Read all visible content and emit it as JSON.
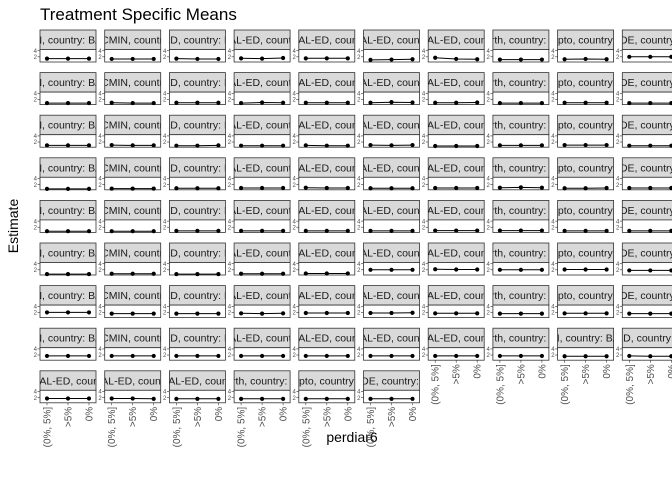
{
  "chart_data": {
    "type": "line",
    "title": "Treatment Specific Means",
    "xlabel": "perdiar6",
    "ylabel": "Estimate",
    "categories": [
      "(0%, 5%]",
      ">5%",
      "0%"
    ],
    "y_tick_labels": [
      "2",
      "4"
    ],
    "grid": false,
    "layout": "facet_wrap",
    "colors": {
      "strip_fill": "#d9d9d9",
      "panel_border": "#333333",
      "point": "#000000",
      "errorbar": "#000000"
    },
    "panels": [
      {
        "strip": "studyid: CMIN, country: BANGLADESH",
        "values": [
          1.4,
          1.4,
          1.4
        ]
      },
      {
        "strip": "studyid: CMIN, country: PERU",
        "values": [
          1.3,
          1.3,
          1.3
        ]
      },
      {
        "strip": "studyid: MAL-ED, country: BANGLADESH",
        "values": [
          1.4,
          1.3,
          1.3
        ]
      },
      {
        "strip": "studyid: MAL-ED, country: BRAZIL",
        "values": [
          1.5,
          1.4,
          1.6
        ]
      },
      {
        "strip": "studyid: MAL-ED, country: INDIA",
        "values": [
          1.5,
          1.5,
          1.5
        ]
      },
      {
        "strip": "studyid: MAL-ED, country: NEPAL",
        "values": [
          1.0,
          1.1,
          1.2
        ]
      },
      {
        "strip": "studyid: MAL-ED, country: PERU",
        "values": [
          1.7,
          1.3,
          1.2
        ]
      },
      {
        "strip": "studyid: NIH-Birth, country: BANGLADESH",
        "values": [
          1.1,
          1.1,
          1.1
        ]
      },
      {
        "strip": "studyid: NIH-Crypto, country: BANGLADESH",
        "values": [
          1.2,
          1.3,
          1.2
        ]
      },
      {
        "strip": "studyid: PROVIDE, country: BANGLADESH",
        "values": [
          2.0,
          2.0,
          2.0
        ]
      },
      {
        "strip": "studyid: CMIN, country: BANGLADESH",
        "values": [
          0.8,
          0.8,
          0.8
        ]
      },
      {
        "strip": "studyid: CMIN, country: PERU",
        "values": [
          0.9,
          0.8,
          0.8
        ]
      },
      {
        "strip": "studyid: MAL-ED, country: BANGLADESH",
        "values": [
          0.9,
          0.9,
          0.9
        ]
      },
      {
        "strip": "studyid: MAL-ED, country: BRAZIL",
        "values": [
          0.8,
          1.0,
          0.9
        ]
      },
      {
        "strip": "studyid: MAL-ED, country: INDIA",
        "values": [
          0.9,
          0.9,
          0.9
        ]
      },
      {
        "strip": "studyid: MAL-ED, country: NEPAL",
        "values": [
          0.9,
          1.1,
          1.0
        ]
      },
      {
        "strip": "studyid: MAL-ED, country: PERU",
        "values": [
          0.9,
          0.9,
          1.0
        ]
      },
      {
        "strip": "studyid: NIH-Birth, country: BANGLADESH",
        "values": [
          0.8,
          0.8,
          0.8
        ]
      },
      {
        "strip": "studyid: NIH-Crypto, country: BANGLADESH",
        "values": [
          0.9,
          0.9,
          0.9
        ]
      },
      {
        "strip": "studyid: PROVIDE, country: BANGLADESH",
        "values": [
          0.8,
          0.8,
          0.8
        ]
      },
      {
        "strip": "studyid: CMIN, country: BANGLADESH",
        "values": [
          0.9,
          0.9,
          0.9
        ]
      },
      {
        "strip": "studyid: CMIN, country: PERU",
        "values": [
          1.0,
          0.9,
          0.9
        ]
      },
      {
        "strip": "studyid: MAL-ED, country: BANGLADESH",
        "values": [
          0.8,
          0.8,
          0.9
        ]
      },
      {
        "strip": "studyid: MAL-ED, country: BRAZIL",
        "values": [
          0.8,
          0.8,
          0.8
        ]
      },
      {
        "strip": "studyid: MAL-ED, country: INDIA",
        "values": [
          0.9,
          0.8,
          0.8
        ]
      },
      {
        "strip": "studyid: MAL-ED, country: NEPAL",
        "values": [
          1.0,
          0.9,
          1.0
        ]
      },
      {
        "strip": "studyid: MAL-ED, country: PERU",
        "values": [
          0.7,
          0.7,
          0.7
        ]
      },
      {
        "strip": "studyid: NIH-Birth, country: BANGLADESH",
        "values": [
          0.9,
          0.9,
          0.9
        ]
      },
      {
        "strip": "studyid: NIH-Crypto, country: BANGLADESH",
        "values": [
          1.0,
          1.0,
          1.0
        ]
      },
      {
        "strip": "studyid: PROVIDE, country: BANGLADESH",
        "values": [
          0.8,
          0.8,
          0.8
        ]
      },
      {
        "strip": "studyid: CMIN, country: BANGLADESH",
        "values": [
          0.6,
          0.6,
          0.6
        ]
      },
      {
        "strip": "studyid: CMIN, country: PERU",
        "values": [
          0.7,
          0.7,
          0.7
        ]
      },
      {
        "strip": "studyid: MAL-ED, country: BANGLADESH",
        "values": [
          0.8,
          0.8,
          0.8
        ]
      },
      {
        "strip": "studyid: MAL-ED, country: BRAZIL",
        "values": [
          0.9,
          0.9,
          0.9
        ]
      },
      {
        "strip": "studyid: MAL-ED, country: INDIA",
        "values": [
          1.0,
          0.9,
          0.9
        ]
      },
      {
        "strip": "studyid: MAL-ED, country: NEPAL",
        "values": [
          0.8,
          0.8,
          0.8
        ]
      },
      {
        "strip": "studyid: MAL-ED, country: PERU",
        "values": [
          0.9,
          0.9,
          0.9
        ]
      },
      {
        "strip": "studyid: NIH-Birth, country: BANGLADESH",
        "values": [
          1.0,
          1.1,
          1.0
        ]
      },
      {
        "strip": "studyid: NIH-Crypto, country: BANGLADESH",
        "values": [
          0.8,
          0.8,
          0.9
        ]
      },
      {
        "strip": "studyid: PROVIDE, country: BANGLADESH",
        "values": [
          0.9,
          0.9,
          0.9
        ]
      },
      {
        "strip": "studyid: CMIN, country: BANGLADESH",
        "values": [
          0.7,
          0.7,
          0.7
        ]
      },
      {
        "strip": "studyid: CMIN, country: PERU",
        "values": [
          0.7,
          0.7,
          0.7
        ]
      },
      {
        "strip": "studyid: MAL-ED, country: BANGLADESH",
        "values": [
          0.8,
          0.8,
          0.8
        ]
      },
      {
        "strip": "studyid: MAL-ED, country: BRAZIL",
        "values": [
          0.8,
          0.8,
          0.8
        ]
      },
      {
        "strip": "studyid: MAL-ED, country: INDIA",
        "values": [
          0.8,
          0.8,
          0.8
        ]
      },
      {
        "strip": "studyid: MAL-ED, country: NEPAL",
        "values": [
          0.8,
          0.8,
          0.8
        ]
      },
      {
        "strip": "studyid: MAL-ED, country: PERU",
        "values": [
          0.9,
          0.9,
          0.9
        ]
      },
      {
        "strip": "studyid: NIH-Birth, country: BANGLADESH",
        "values": [
          0.9,
          0.9,
          0.9
        ]
      },
      {
        "strip": "studyid: NIH-Crypto, country: BANGLADESH",
        "values": [
          0.8,
          0.8,
          0.8
        ]
      },
      {
        "strip": "studyid: PROVIDE, country: BANGLADESH",
        "values": [
          0.8,
          0.8,
          0.8
        ]
      },
      {
        "strip": "studyid: CMIN, country: BANGLADESH",
        "values": [
          0.6,
          0.6,
          0.6
        ]
      },
      {
        "strip": "studyid: CMIN, country: PERU",
        "values": [
          0.7,
          0.7,
          0.7
        ]
      },
      {
        "strip": "studyid: MAL-ED, country: BANGLADESH",
        "values": [
          0.6,
          0.6,
          0.6
        ]
      },
      {
        "strip": "studyid: MAL-ED, country: BRAZIL",
        "values": [
          0.7,
          0.7,
          0.7
        ]
      },
      {
        "strip": "studyid: MAL-ED, country: INDIA",
        "values": [
          0.8,
          0.8,
          0.8
        ]
      },
      {
        "strip": "studyid: MAL-ED, country: NEPAL",
        "values": [
          2.0,
          2.0,
          2.0
        ]
      },
      {
        "strip": "studyid: MAL-ED, country: PERU",
        "values": [
          2.2,
          2.1,
          2.1
        ]
      },
      {
        "strip": "studyid: NIH-Birth, country: BANGLADESH",
        "values": [
          2.0,
          2.0,
          2.0
        ]
      },
      {
        "strip": "studyid: NIH-Crypto, country: BANGLADESH",
        "values": [
          2.1,
          2.1,
          2.1
        ]
      },
      {
        "strip": "studyid: PROVIDE, country: BANGLADESH",
        "values": [
          1.8,
          1.8,
          1.8
        ]
      },
      {
        "strip": "studyid: CMIN, country: BANGLADESH",
        "values": [
          2.0,
          2.0,
          2.0
        ]
      },
      {
        "strip": "studyid: CMIN, country: PERU",
        "values": [
          1.6,
          1.6,
          1.6
        ]
      },
      {
        "strip": "studyid: MAL-ED, country: BANGLADESH",
        "values": [
          1.6,
          1.6,
          1.6
        ]
      },
      {
        "strip": "studyid: MAL-ED, country: BRAZIL",
        "values": [
          1.7,
          1.6,
          1.7
        ]
      },
      {
        "strip": "studyid: MAL-ED, country: INDIA",
        "values": [
          1.8,
          1.8,
          1.8
        ]
      },
      {
        "strip": "studyid: MAL-ED, country: NEPAL",
        "values": [
          1.8,
          1.8,
          1.9
        ]
      },
      {
        "strip": "studyid: MAL-ED, country: PERU",
        "values": [
          1.7,
          1.7,
          1.7
        ]
      },
      {
        "strip": "studyid: NIH-Birth, country: BANGLADESH",
        "values": [
          1.6,
          1.6,
          1.6
        ]
      },
      {
        "strip": "studyid: NIH-Crypto, country: BANGLADESH",
        "values": [
          1.7,
          1.7,
          1.7
        ]
      },
      {
        "strip": "studyid: PROVIDE, country: BANGLADESH",
        "values": [
          1.6,
          1.6,
          1.6
        ]
      },
      {
        "strip": "studyid: CMIN, country: BANGLADESH",
        "values": [
          1.7,
          1.7,
          1.7
        ]
      },
      {
        "strip": "studyid: CMIN, country: PERU",
        "values": [
          1.7,
          1.7,
          1.7
        ]
      },
      {
        "strip": "studyid: MAL-ED, country: BANGLADESH",
        "values": [
          1.7,
          1.7,
          1.7
        ]
      },
      {
        "strip": "studyid: MAL-ED, country: BRAZIL",
        "values": [
          1.7,
          1.7,
          1.7
        ]
      },
      {
        "strip": "studyid: MAL-ED, country: INDIA",
        "values": [
          1.7,
          1.7,
          1.7
        ]
      },
      {
        "strip": "studyid: MAL-ED, country: NEPAL",
        "values": [
          1.7,
          1.7,
          1.7
        ]
      },
      {
        "strip": "studyid: MAL-ED, country: PERU",
        "values": [
          1.7,
          1.7,
          1.7
        ]
      },
      {
        "strip": "studyid: NIH-Birth, country: BANGLADESH",
        "values": [
          1.7,
          1.7,
          1.7
        ]
      },
      {
        "strip": "studyid: CMIN, country: BANGLADESH",
        "values": [
          1.6,
          1.6,
          1.6
        ]
      },
      {
        "strip": "studyid: MAL-ED, country: BANGLADESH",
        "values": [
          1.7,
          1.6,
          1.6
        ]
      },
      {
        "strip": "studyid: MAL-ED, country: INDIA",
        "values": [
          1.7,
          1.7,
          1.7
        ]
      },
      {
        "strip": "studyid: MAL-ED, country: NEPAL",
        "values": [
          1.7,
          1.7,
          1.6
        ]
      },
      {
        "strip": "studyid: MAL-ED, country: PERU",
        "values": [
          1.6,
          1.6,
          1.6
        ]
      },
      {
        "strip": "studyid: NIH-Birth, country: BANGLADESH",
        "values": [
          1.6,
          1.6,
          1.6
        ]
      },
      {
        "strip": "studyid: NIH-Crypto, country: BANGLADESH",
        "values": [
          1.6,
          1.6,
          1.6
        ]
      },
      {
        "strip": "studyid: PROVIDE, country: BANGLADESH",
        "values": [
          1.6,
          1.6,
          1.6
        ]
      }
    ]
  }
}
